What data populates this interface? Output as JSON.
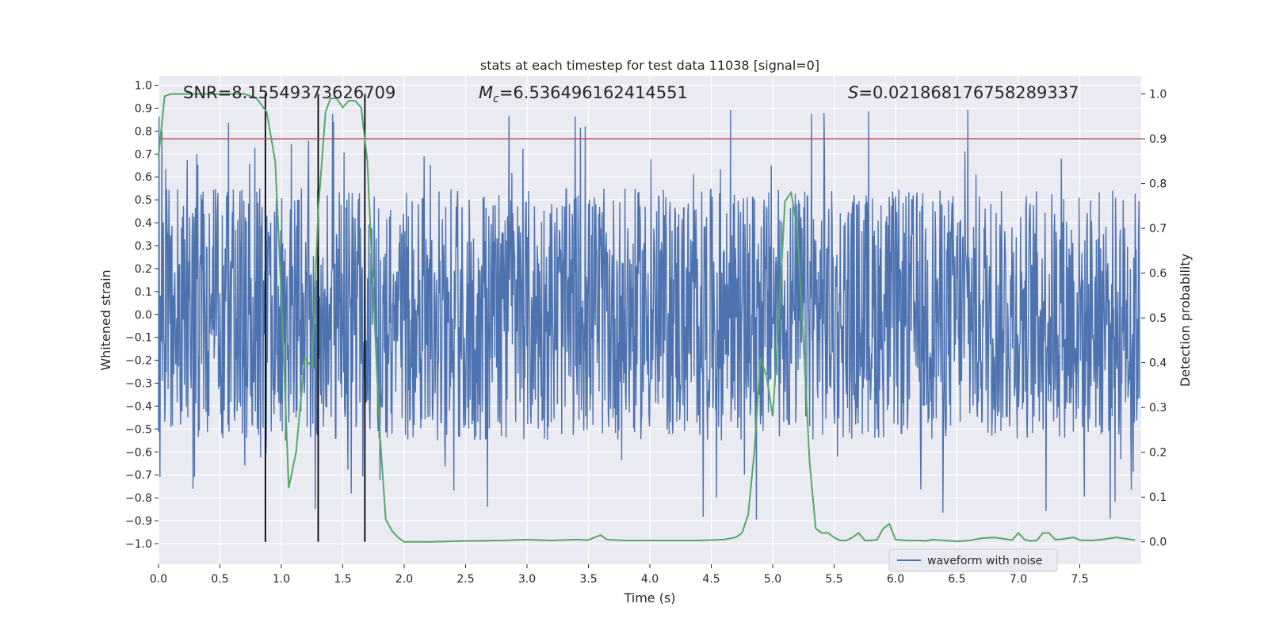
{
  "chart_data": {
    "type": "line",
    "title": "stats at each timestep for test data 11038 [signal=0]",
    "xlabel": "Time (s)",
    "ylabel": "Whitened strain",
    "y2label": "Detection probability",
    "xlim": [
      0.0,
      8.0
    ],
    "ylim": [
      -1.09,
      1.04
    ],
    "y2lim": [
      -0.05,
      1.04
    ],
    "x_ticks": [
      "0.0",
      "0.5",
      "1.0",
      "1.5",
      "2.0",
      "2.5",
      "3.0",
      "3.5",
      "4.0",
      "4.5",
      "5.0",
      "5.5",
      "6.0",
      "6.5",
      "7.0",
      "7.5"
    ],
    "y_ticks": [
      "1.0",
      "0.9",
      "0.8",
      "0.7",
      "0.6",
      "0.5",
      "0.4",
      "0.3",
      "0.2",
      "0.1",
      "0.0",
      "-0.1",
      "-0.2",
      "-0.3",
      "-0.4",
      "-0.5",
      "-0.6",
      "-0.7",
      "-0.8",
      "-0.9",
      "-1.0"
    ],
    "y2_ticks": [
      "1.0",
      "0.9",
      "0.8",
      "0.7",
      "0.6",
      "0.5",
      "0.4",
      "0.3",
      "0.2",
      "0.1",
      "0.0"
    ],
    "annotations": {
      "snr": "SNR=8.15549373626709",
      "mc_symbol": "M",
      "mc_sub": "c",
      "mc_value": "=6.536496162414551",
      "s_symbol": "S",
      "s_value": "=0.021868176758289337"
    },
    "threshold": {
      "value": 0.9,
      "axis": "y2",
      "color": "#c44e52"
    },
    "vertical_lines": [
      0.87,
      1.3,
      1.68
    ],
    "waveform": {
      "name": "waveform with noise",
      "color": "#4c72b0",
      "samples": 2048,
      "typical_amplitude": 0.55,
      "spike_max": 0.93,
      "spike_min": -0.99
    },
    "probability": {
      "color": "#55a868",
      "x": [
        0.0,
        0.05,
        0.1,
        0.2,
        0.3,
        0.4,
        0.5,
        0.6,
        0.7,
        0.8,
        0.88,
        0.95,
        1.0,
        1.06,
        1.12,
        1.19,
        1.25,
        1.3,
        1.36,
        1.4,
        1.45,
        1.5,
        1.55,
        1.6,
        1.65,
        1.7,
        1.75,
        1.8,
        1.85,
        1.9,
        1.95,
        2.0,
        2.2,
        2.5,
        2.8,
        3.0,
        3.2,
        3.4,
        3.5,
        3.55,
        3.6,
        3.65,
        3.8,
        4.0,
        4.2,
        4.4,
        4.6,
        4.7,
        4.75,
        4.8,
        4.85,
        4.9,
        4.95,
        5.0,
        5.05,
        5.1,
        5.15,
        5.2,
        5.25,
        5.3,
        5.35,
        5.4,
        5.45,
        5.5,
        5.55,
        5.6,
        5.65,
        5.7,
        5.75,
        5.8,
        5.85,
        5.9,
        5.95,
        6.0,
        6.05,
        6.1,
        6.15,
        6.2,
        6.25,
        6.3,
        6.4,
        6.5,
        6.6,
        6.7,
        6.8,
        6.9,
        6.95,
        7.0,
        7.05,
        7.1,
        7.15,
        7.2,
        7.25,
        7.3,
        7.35,
        7.45,
        7.5,
        7.6,
        7.7,
        7.8,
        7.9,
        7.95
      ],
      "y": [
        0.86,
        0.995,
        1.0,
        1.0,
        1.0,
        1.0,
        1.0,
        1.0,
        1.0,
        0.99,
        0.96,
        0.85,
        0.55,
        0.12,
        0.2,
        0.41,
        0.39,
        0.74,
        0.96,
        0.99,
        0.99,
        0.97,
        0.985,
        0.985,
        0.97,
        0.85,
        0.55,
        0.25,
        0.05,
        0.025,
        0.01,
        0.0,
        0.0,
        0.002,
        0.003,
        0.005,
        0.003,
        0.005,
        0.004,
        0.01,
        0.015,
        0.005,
        0.003,
        0.003,
        0.003,
        0.003,
        0.005,
        0.01,
        0.02,
        0.06,
        0.2,
        0.41,
        0.37,
        0.28,
        0.5,
        0.76,
        0.78,
        0.7,
        0.45,
        0.18,
        0.03,
        0.02,
        0.02,
        0.01,
        0.003,
        0.003,
        0.01,
        0.02,
        0.003,
        0.003,
        0.005,
        0.03,
        0.04,
        0.005,
        0.004,
        0.003,
        0.003,
        0.003,
        0.002,
        0.005,
        0.003,
        0.001,
        0.003,
        0.008,
        0.01,
        0.006,
        0.004,
        0.02,
        0.005,
        0.002,
        0.003,
        0.02,
        0.02,
        0.005,
        0.006,
        0.01,
        0.004,
        0.003,
        0.006,
        0.01,
        0.006,
        0.004
      ]
    }
  }
}
